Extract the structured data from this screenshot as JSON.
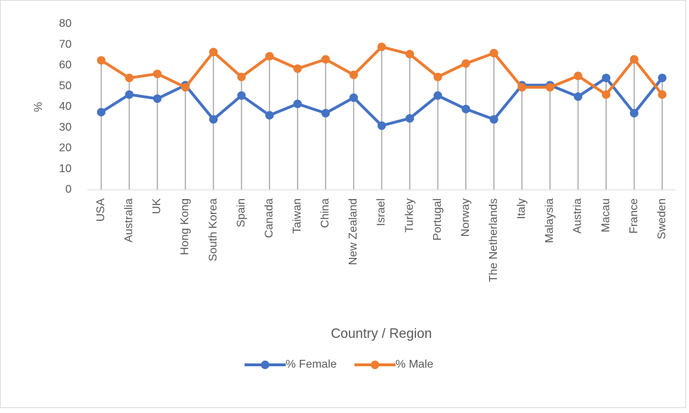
{
  "chart_data": {
    "type": "line",
    "x_label": "Country / Region",
    "y_label": "%",
    "categories": [
      "USA",
      "Australia",
      "UK",
      "Hong Kong",
      "South Korea",
      "Spain",
      "Canada",
      "Taiwan",
      "China",
      "New Zealand",
      "Israel",
      "Turkey",
      "Portugal",
      "Norway",
      "The Netherlands",
      "Italy",
      "Malaysia",
      "Austria",
      "Macau",
      "France",
      "Sweden"
    ],
    "series": [
      {
        "name": "% Female",
        "color": "#4472c4",
        "values": [
          37.5,
          46,
          44,
          50.5,
          34,
          45.5,
          36,
          41.5,
          37,
          44.5,
          31,
          34.5,
          45.5,
          39,
          34,
          50.5,
          50.5,
          45,
          54,
          37,
          54
        ]
      },
      {
        "name": "% Male",
        "color": "#ed7d31",
        "values": [
          62.5,
          54,
          56,
          49.5,
          66.5,
          54.5,
          64.5,
          58.5,
          63,
          55.5,
          69,
          65.5,
          54.5,
          61,
          66,
          49.5,
          49.5,
          55,
          46,
          63,
          46
        ]
      }
    ],
    "ylim": [
      0,
      80
    ],
    "yticks": [
      0,
      10,
      20,
      30,
      40,
      50,
      60,
      70,
      80
    ],
    "drop_lines": true,
    "legend": "bottom"
  }
}
